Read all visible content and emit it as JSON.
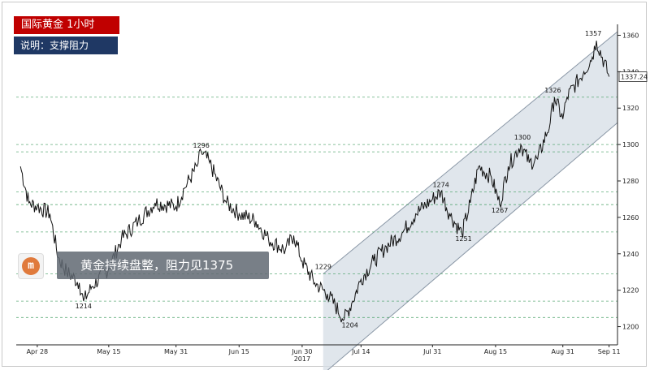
{
  "header": {
    "title": "国际黄金  1小时",
    "note": "说明：支撑阻力"
  },
  "headline": {
    "text": "黄金持续盘整，阻力见1375"
  },
  "logo": {
    "icon": "company-logo-icon",
    "color": "#e07a3c"
  },
  "colors": {
    "title_bg": "#c00000",
    "note_bg": "#1f3864",
    "channel_fill": "#d6dde6",
    "level_line": "#3a9a5a"
  },
  "chart_data": {
    "type": "line",
    "title": "",
    "xlabel": "",
    "ylabel": "",
    "x_ticks": [
      "Apr 28",
      "May 15",
      "May 31",
      "Jun 15",
      "Jun 30",
      "Jul 14",
      "Jul 31",
      "Aug 15",
      "Aug 31",
      "Sep 11"
    ],
    "year_label": "2017",
    "y_ticks": [
      1200,
      1220,
      1240,
      1260,
      1280,
      1300,
      1320,
      1340,
      1360
    ],
    "ylim": [
      1190,
      1366
    ],
    "y_axis_side": "right",
    "last_price": "1337.24",
    "series": [
      {
        "values": [
          {
            "x": "2017-04-24",
            "y": 1288
          },
          {
            "x": "2017-04-26",
            "y": 1268
          },
          {
            "x": "2017-04-28",
            "y": 1266
          },
          {
            "x": "2017-05-01",
            "y": 1262
          },
          {
            "x": "2017-05-03",
            "y": 1238
          },
          {
            "x": "2017-05-05",
            "y": 1230
          },
          {
            "x": "2017-05-08",
            "y": 1224
          },
          {
            "x": "2017-05-09",
            "y": 1214
          },
          {
            "x": "2017-05-11",
            "y": 1222
          },
          {
            "x": "2017-05-15",
            "y": 1232
          },
          {
            "x": "2017-05-18",
            "y": 1248
          },
          {
            "x": "2017-05-22",
            "y": 1258
          },
          {
            "x": "2017-05-26",
            "y": 1268
          },
          {
            "x": "2017-05-31",
            "y": 1266
          },
          {
            "x": "2017-06-02",
            "y": 1276
          },
          {
            "x": "2017-06-05",
            "y": 1288
          },
          {
            "x": "2017-06-06",
            "y": 1296
          },
          {
            "x": "2017-06-08",
            "y": 1290
          },
          {
            "x": "2017-06-12",
            "y": 1268
          },
          {
            "x": "2017-06-15",
            "y": 1262
          },
          {
            "x": "2017-06-19",
            "y": 1258
          },
          {
            "x": "2017-06-22",
            "y": 1248
          },
          {
            "x": "2017-06-26",
            "y": 1242
          },
          {
            "x": "2017-06-28",
            "y": 1250
          },
          {
            "x": "2017-06-30",
            "y": 1236
          },
          {
            "x": "2017-07-03",
            "y": 1224
          },
          {
            "x": "2017-07-06",
            "y": 1218
          },
          {
            "x": "2017-07-10",
            "y": 1204
          },
          {
            "x": "2017-07-12",
            "y": 1214
          },
          {
            "x": "2017-07-14",
            "y": 1226
          },
          {
            "x": "2017-07-17",
            "y": 1236
          },
          {
            "x": "2017-07-20",
            "y": 1244
          },
          {
            "x": "2017-07-24",
            "y": 1252
          },
          {
            "x": "2017-07-27",
            "y": 1262
          },
          {
            "x": "2017-07-31",
            "y": 1270
          },
          {
            "x": "2017-08-02",
            "y": 1274
          },
          {
            "x": "2017-08-04",
            "y": 1262
          },
          {
            "x": "2017-08-07",
            "y": 1251
          },
          {
            "x": "2017-08-09",
            "y": 1268
          },
          {
            "x": "2017-08-11",
            "y": 1288
          },
          {
            "x": "2017-08-14",
            "y": 1282
          },
          {
            "x": "2017-08-16",
            "y": 1267
          },
          {
            "x": "2017-08-18",
            "y": 1288
          },
          {
            "x": "2017-08-21",
            "y": 1300
          },
          {
            "x": "2017-08-23",
            "y": 1290
          },
          {
            "x": "2017-08-25",
            "y": 1292
          },
          {
            "x": "2017-08-28",
            "y": 1312
          },
          {
            "x": "2017-08-29",
            "y": 1326
          },
          {
            "x": "2017-08-31",
            "y": 1314
          },
          {
            "x": "2017-09-01",
            "y": 1326
          },
          {
            "x": "2017-09-05",
            "y": 1340
          },
          {
            "x": "2017-09-07",
            "y": 1348
          },
          {
            "x": "2017-09-08",
            "y": 1357
          },
          {
            "x": "2017-09-11",
            "y": 1337.24
          }
        ]
      }
    ],
    "annotations": [
      {
        "label": "1214",
        "x": "2017-05-09",
        "y": 1214
      },
      {
        "label": "1296",
        "x": "2017-06-06",
        "y": 1296
      },
      {
        "label": "1229",
        "x": "2017-07-05",
        "y": 1229
      },
      {
        "label": "1204",
        "x": "2017-07-10",
        "y": 1204
      },
      {
        "label": "1274",
        "x": "2017-08-02",
        "y": 1274
      },
      {
        "label": "1251",
        "x": "2017-08-07",
        "y": 1251
      },
      {
        "label": "1267",
        "x": "2017-08-16",
        "y": 1267
      },
      {
        "label": "1300",
        "x": "2017-08-21",
        "y": 1300
      },
      {
        "label": "1326",
        "x": "2017-08-29",
        "y": 1326
      },
      {
        "label": "1357",
        "x": "2017-09-08",
        "y": 1357
      }
    ],
    "horizontal_levels": [
      1214,
      1205,
      1229,
      1252,
      1267,
      1274,
      1296,
      1300,
      1326
    ],
    "channel": {
      "upper": [
        {
          "x": "2017-07-05",
          "y": 1229
        },
        {
          "x": "2017-09-13",
          "y": 1362
        }
      ],
      "lower": [
        {
          "x": "2017-07-05",
          "y": 1174
        },
        {
          "x": "2017-09-13",
          "y": 1312
        }
      ]
    }
  }
}
